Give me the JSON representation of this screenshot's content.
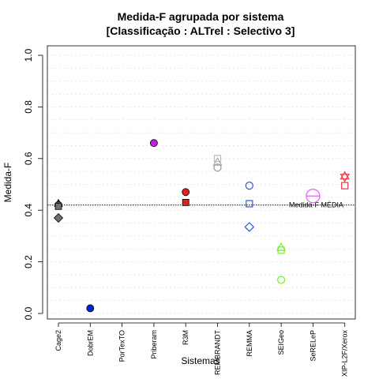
{
  "chart_data": {
    "type": "scatter",
    "title": "Medida-F agrupada por sistema",
    "subtitle": "[Classificação : ALTrel : Selectivo 3]",
    "xlabel": "Sistemas",
    "ylabel": "Medida-F",
    "ylim": [
      0,
      1
    ],
    "yticks": [
      "0.0",
      "0.2",
      "0.4",
      "0.6",
      "0.8",
      "1.0"
    ],
    "grid": true,
    "categories": [
      "Cage2",
      "DobrEM",
      "PorTexTO",
      "Priberam",
      "R3M",
      "REMBRANDT",
      "REMMA",
      "SEIGeo",
      "SeRELeP",
      "XIP-L2F/Xerox"
    ],
    "reference_line": {
      "label": "Medida-F MÉDIA",
      "value": 0.42
    },
    "points": [
      {
        "category": "Cage2",
        "y": 0.425,
        "shape": "triangle",
        "color": "#404040",
        "filled": true
      },
      {
        "category": "Cage2",
        "y": 0.42,
        "shape": "circle",
        "color": "#555555",
        "filled": true
      },
      {
        "category": "Cage2",
        "y": 0.415,
        "shape": "square",
        "color": "#707070",
        "filled": true
      },
      {
        "category": "Cage2",
        "y": 0.37,
        "shape": "diamond",
        "color": "#707070",
        "filled": true
      },
      {
        "category": "DobrEM",
        "y": 0.02,
        "shape": "circle",
        "color": "#0022dd",
        "filled": true
      },
      {
        "category": "Priberam",
        "y": 0.66,
        "shape": "circle",
        "color": "#bb22dd",
        "filled": true
      },
      {
        "category": "R3M",
        "y": 0.47,
        "shape": "circle",
        "color": "#dd2222",
        "filled": true
      },
      {
        "category": "R3M",
        "y": 0.43,
        "shape": "square",
        "color": "#dd2222",
        "filled": true
      },
      {
        "category": "REMBRANDT",
        "y": 0.6,
        "shape": "square",
        "color": "#bbbbbb",
        "filled": false
      },
      {
        "category": "REMBRANDT",
        "y": 0.585,
        "shape": "triangle",
        "color": "#aaaaaa",
        "filled": false
      },
      {
        "category": "REMBRANDT",
        "y": 0.565,
        "shape": "circle",
        "color": "#999999",
        "filled": false
      },
      {
        "category": "REMMA",
        "y": 0.495,
        "shape": "circle",
        "color": "#3355dd",
        "filled": false
      },
      {
        "category": "REMMA",
        "y": 0.425,
        "shape": "square",
        "color": "#3355dd",
        "filled": false
      },
      {
        "category": "REMMA",
        "y": 0.335,
        "shape": "diamond",
        "color": "#3355dd",
        "filled": false
      },
      {
        "category": "SEIGeo",
        "y": 0.255,
        "shape": "triangle",
        "color": "#77ee33",
        "filled": false
      },
      {
        "category": "SEIGeo",
        "y": 0.245,
        "shape": "square",
        "color": "#77ee33",
        "filled": false
      },
      {
        "category": "SEIGeo",
        "y": 0.13,
        "shape": "circle",
        "color": "#77ee33",
        "filled": false
      },
      {
        "category": "SeRELeP",
        "y": 0.455,
        "shape": "circle-large",
        "color": "#dd66ee",
        "filled": false
      },
      {
        "category": "XIP-L2F/Xerox",
        "y": 0.53,
        "shape": "star",
        "color": "#ee3344",
        "filled": false
      },
      {
        "category": "XIP-L2F/Xerox",
        "y": 0.495,
        "shape": "square",
        "color": "#ee3344",
        "filled": false
      }
    ]
  }
}
